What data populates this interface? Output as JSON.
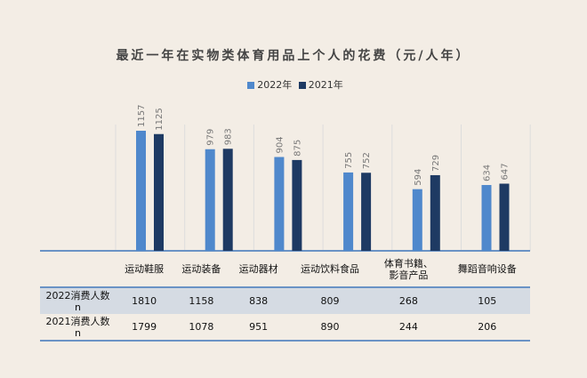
{
  "chart_data": {
    "type": "bar",
    "title": "最近一年在实物类体育用品上个人的花费（元/人年）",
    "categories": [
      "运动鞋服",
      "运动装备",
      "运动器材",
      "运动饮料食品",
      "体育书籍、\n影音产品",
      "舞蹈音响设备"
    ],
    "series": [
      {
        "name": "2022年",
        "color": "#4f88cc",
        "values": [
          1157,
          979,
          904,
          755,
          594,
          634
        ]
      },
      {
        "name": "2021年",
        "color": "#1e3a63",
        "values": [
          1125,
          983,
          875,
          752,
          729,
          647
        ]
      }
    ],
    "ylim": [
      0,
      1200
    ],
    "legend": "top",
    "table": {
      "rows": [
        {
          "label": "2022消费人数\nn",
          "values": [
            1810,
            1158,
            838,
            809,
            268,
            105
          ]
        },
        {
          "label": "2021消费人数\nn",
          "values": [
            1799,
            1078,
            951,
            890,
            244,
            206
          ]
        }
      ]
    }
  }
}
